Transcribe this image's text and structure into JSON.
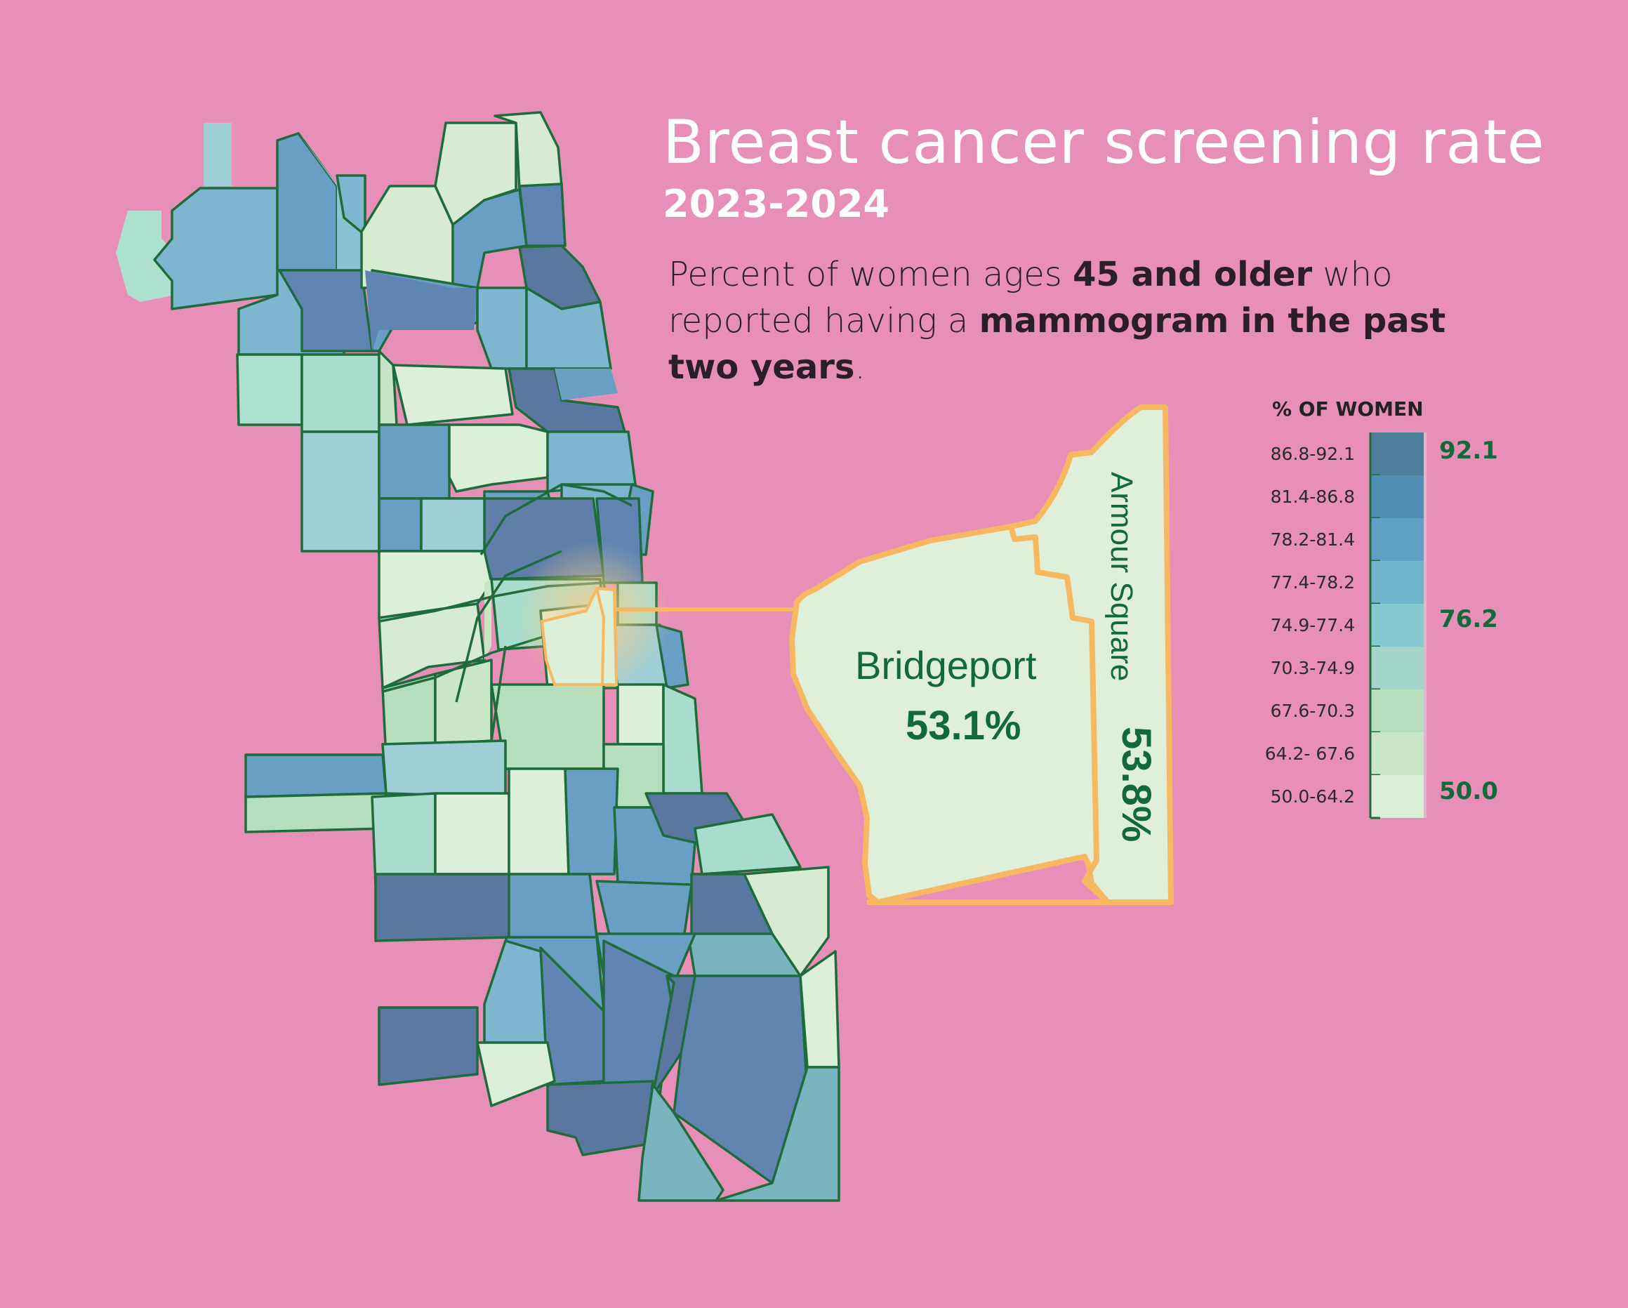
{
  "header": {
    "title": "Breast cancer screening rate",
    "subtitle": "2023-2024",
    "description": {
      "part1": "Percent of women ages ",
      "bold1": "45 and older",
      "part2": " who reported having a ",
      "bold2": "mammogram in the past two years",
      "part3": "."
    }
  },
  "legend": {
    "title": "% OF WOMEN",
    "classes": [
      {
        "label": "86.8-92.1",
        "color": "#4e7f9a"
      },
      {
        "label": "81.4-86.8",
        "color": "#4f8db4"
      },
      {
        "label": "78.2-81.4",
        "color": "#5ea1c4"
      },
      {
        "label": "77.4-78.2",
        "color": "#6fb5cc"
      },
      {
        "label": "74.9-77.4",
        "color": "#86c8cf"
      },
      {
        "label": "70.3-74.9",
        "color": "#a3d6c8"
      },
      {
        "label": "67.6-70.3",
        "color": "#b5dfbc"
      },
      {
        "label": "64.2- 67.6",
        "color": "#c9e7c5"
      },
      {
        "label": "50.0-64.2",
        "color": "#dcefd8"
      }
    ],
    "markers": {
      "top": "92.1",
      "middle": "76.2",
      "bottom": "50.0"
    }
  },
  "callout": {
    "areas": [
      {
        "name": "Bridgeport",
        "value": "53.1%"
      },
      {
        "name": "Armour Square",
        "value": "53.8%"
      }
    ],
    "highlight_color": "#f7b862"
  },
  "colors": {
    "background": "#e78fb6",
    "boundary": "#1e6b3c",
    "class_dark": "#5b79a2",
    "class_blue": "#6b9cc2",
    "class_teal": "#7fb6c6",
    "class_light": "#dcefd8"
  }
}
